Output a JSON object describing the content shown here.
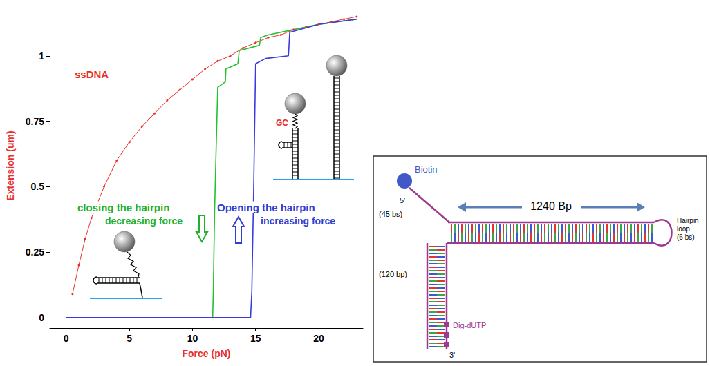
{
  "chart_data": {
    "type": "line",
    "x_label": "Force (pN)",
    "y_label": "Extension (um)",
    "xlim": [
      -1.3,
      23.5
    ],
    "xticks": [
      0,
      5,
      10,
      15,
      20
    ],
    "ylim": [
      -0.04,
      1.2
    ],
    "yticks": [
      0,
      0.25,
      0.5,
      0.75,
      1
    ],
    "grid": false,
    "series": [
      {
        "name": "ssDNA",
        "color": "#e8302a",
        "marker": "circle",
        "line_style": "solid",
        "x": [
          0.5,
          1,
          1.5,
          2,
          3,
          4,
          5,
          6,
          7,
          8,
          9,
          10,
          11,
          12,
          13,
          14,
          15,
          16,
          17,
          18,
          19,
          20,
          21,
          22,
          23
        ],
        "values": [
          0.09,
          0.2,
          0.3,
          0.38,
          0.5,
          0.6,
          0.67,
          0.73,
          0.78,
          0.83,
          0.87,
          0.91,
          0.95,
          0.98,
          1.0,
          1.03,
          1.05,
          1.07,
          1.08,
          1.1,
          1.11,
          1.12,
          1.13,
          1.14,
          1.15
        ]
      },
      {
        "color": "#22c22e",
        "marker": "none",
        "line_style": "solid",
        "x": [
          0,
          11.6,
          11.65,
          11.75,
          11.85,
          12,
          12.6,
          12.65,
          13.6,
          13.7,
          15.3,
          15.4,
          16,
          18,
          20,
          23
        ],
        "values": [
          0,
          0,
          0.1,
          0.4,
          0.6,
          0.88,
          0.9,
          0.95,
          0.97,
          1.02,
          1.04,
          1.07,
          1.08,
          1.1,
          1.12,
          1.14
        ]
      },
      {
        "color": "#3a3adf",
        "marker": "none",
        "line_style": "solid",
        "x": [
          0,
          14.6,
          14.7,
          14.85,
          15,
          15.8,
          17.6,
          17.7,
          20,
          23
        ],
        "values": [
          0,
          0,
          0.1,
          0.5,
          0.97,
          0.99,
          1.0,
          1.09,
          1.12,
          1.14
        ]
      }
    ],
    "annotations": [
      {
        "text": "closing the hairpin",
        "color": "#22b02a"
      },
      {
        "text": "decreasing force",
        "color": "#22b02a"
      },
      {
        "text": "Opening the hairpin",
        "color": "#2f3fd0"
      },
      {
        "text": "increasing force",
        "color": "#2f3fd0"
      },
      {
        "text": "GC",
        "color": "#e8302a"
      }
    ]
  },
  "diagram": {
    "biotin": "Biotin",
    "five_prime_end": "5'",
    "single_strand": "(45 bs)",
    "stem": "1240 Bp",
    "loop": "Hairpin loop",
    "loop_length": "(6 bs)",
    "handle": "(120 bp)",
    "label": "Dig-dUTP",
    "three_prime_end": "3'"
  }
}
